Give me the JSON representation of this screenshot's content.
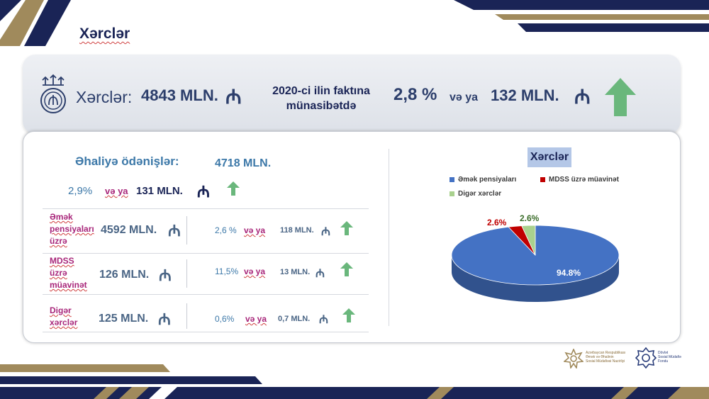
{
  "page": {
    "title": "Xərclər"
  },
  "summary": {
    "label": "Xərclər:",
    "value": "4843 MLN.",
    "currency": "₼",
    "compare_text_line1": "2020-ci ilin faktına",
    "compare_text_line2": "münasibətdə",
    "pct": "2,8 %",
    "or_text": "və ya",
    "abs": "132 MLN.",
    "currency2": "₼",
    "trend": "up"
  },
  "population": {
    "label": "Əhaliyə ödənişlər:",
    "value": "4718 MLN.",
    "currency": "₼",
    "pct": "2,9%",
    "or_text": "və ya",
    "abs": "131 MLN.",
    "currency2": "₼",
    "trend": "up"
  },
  "rows": [
    {
      "label_l1": "Əmək",
      "label_l2": "pensiyaları",
      "label_l3": "üzrə",
      "value": "4592 MLN.",
      "currency": "₼",
      "pct": "2,6 %",
      "or_text": "və ya",
      "abs": "118 MLN.",
      "currency2": "₼",
      "trend": "up"
    },
    {
      "label_l1": "MDSS",
      "label_l2": "üzrə",
      "label_l3": "müavinət",
      "value": "126 MLN.",
      "currency": "₼",
      "pct": "11,5%",
      "or_text": "və ya",
      "abs": "13 MLN.",
      "currency2": "₼",
      "trend": "up"
    },
    {
      "label_l1": "Digər",
      "label_l2": "xərclər",
      "label_l3": "",
      "value": "125 MLN.",
      "currency": "₼",
      "pct": "0,6%",
      "or_text": "və ya",
      "abs": "0,7 MLN.",
      "currency2": "₼",
      "trend": "up"
    }
  ],
  "chart_data": {
    "type": "pie",
    "title": "Xərclər",
    "categories": [
      "Əmək pensiyaları",
      "MDSS üzrə müavinət",
      "Digər xərclər"
    ],
    "values": [
      94.8,
      2.6,
      2.6
    ],
    "labels": [
      "94.8%",
      "2.6%",
      "2.6%"
    ],
    "colors": [
      "#4472c4",
      "#c00000",
      "#a9d18e"
    ],
    "legend_position": "top"
  },
  "logos": {
    "ministry_line1": "Azərbaycan Respublikası",
    "ministry_line2": "Əmək və Əhalinin",
    "ministry_line3": "Sosial Müdafiəsi Nazirliyi",
    "fund_line1": "Dövlət",
    "fund_line2": "Sosial Müdafiə",
    "fund_line3": "Fondu"
  },
  "colors": {
    "navy": "#1a2456",
    "gold": "#a08a5c",
    "arrow_green": "#6ab77c",
    "accent_magenta": "#a8267a"
  }
}
